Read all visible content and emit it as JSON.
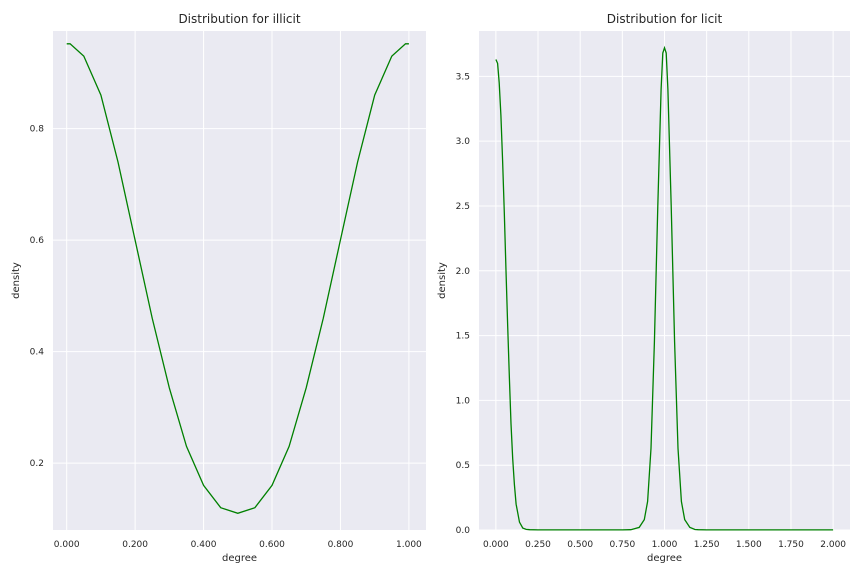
{
  "chart_data": [
    {
      "type": "line",
      "title": "Distribution for illicit",
      "xlabel": "degree",
      "ylabel": "density",
      "xlim": [
        -0.04,
        1.05
      ],
      "ylim": [
        0.08,
        0.975
      ],
      "xticks": [
        0.0,
        0.2,
        0.4,
        0.6,
        0.8,
        1.0
      ],
      "xtick_labels": [
        "0.000",
        "0.200",
        "0.400",
        "0.600",
        "0.800",
        "1.000"
      ],
      "yticks": [
        0.2,
        0.4,
        0.6,
        0.8
      ],
      "ytick_labels": [
        "0.2",
        "0.4",
        "0.6",
        "0.8"
      ],
      "grid": true,
      "line_color": "#008000",
      "series": [
        {
          "x": [
            0.0,
            0.01,
            0.05,
            0.1,
            0.15,
            0.2,
            0.25,
            0.3,
            0.35,
            0.4,
            0.45,
            0.5,
            0.55,
            0.6,
            0.65,
            0.7,
            0.75,
            0.8,
            0.85,
            0.9,
            0.95,
            0.99,
            1.0
          ],
          "y": [
            0.952,
            0.952,
            0.93,
            0.86,
            0.74,
            0.6,
            0.46,
            0.335,
            0.23,
            0.16,
            0.12,
            0.11,
            0.12,
            0.16,
            0.23,
            0.335,
            0.46,
            0.6,
            0.74,
            0.86,
            0.93,
            0.952,
            0.952
          ]
        }
      ]
    },
    {
      "type": "line",
      "title": "Distribution for licit",
      "xlabel": "degree",
      "ylabel": "density",
      "xlim": [
        -0.1,
        2.1
      ],
      "ylim": [
        0.0,
        3.85
      ],
      "xticks": [
        0.0,
        0.25,
        0.5,
        0.75,
        1.0,
        1.25,
        1.5,
        1.75,
        2.0
      ],
      "xtick_labels": [
        "0.000",
        "0.250",
        "0.500",
        "0.750",
        "1.000",
        "1.250",
        "1.500",
        "1.750",
        "2.000"
      ],
      "yticks": [
        0.0,
        0.5,
        1.0,
        1.5,
        2.0,
        2.5,
        3.0,
        3.5
      ],
      "ytick_labels": [
        "0.0",
        "0.5",
        "1.0",
        "1.5",
        "2.0",
        "2.5",
        "3.0",
        "3.5"
      ],
      "grid": true,
      "line_color": "#008000",
      "series": [
        {
          "x": [
            0.0,
            0.01,
            0.02,
            0.03,
            0.04,
            0.05,
            0.06,
            0.07,
            0.08,
            0.09,
            0.1,
            0.11,
            0.12,
            0.14,
            0.16,
            0.18,
            0.2,
            0.25,
            0.3,
            0.5,
            0.75,
            0.8,
            0.85,
            0.88,
            0.9,
            0.92,
            0.94,
            0.96,
            0.98,
            0.99,
            1.0,
            1.01,
            1.02,
            1.04,
            1.06,
            1.08,
            1.1,
            1.12,
            1.15,
            1.18,
            1.2,
            1.25,
            1.5,
            1.75,
            2.0
          ],
          "y": [
            3.63,
            3.6,
            3.45,
            3.2,
            2.85,
            2.45,
            2.0,
            1.57,
            1.17,
            0.82,
            0.55,
            0.35,
            0.2,
            0.06,
            0.015,
            0.005,
            0.002,
            0.001,
            0.001,
            0.001,
            0.001,
            0.002,
            0.02,
            0.08,
            0.22,
            0.63,
            1.45,
            2.5,
            3.4,
            3.68,
            3.72,
            3.68,
            3.4,
            2.5,
            1.45,
            0.63,
            0.22,
            0.08,
            0.02,
            0.004,
            0.002,
            0.001,
            0.001,
            0.001,
            0.001
          ]
        }
      ]
    }
  ]
}
